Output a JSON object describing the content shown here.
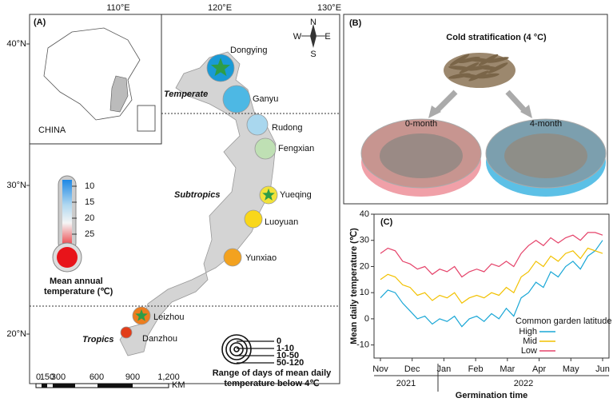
{
  "panel_a": {
    "label": "(A)",
    "lon_labels": [
      "110°E",
      "120°E",
      "130°E"
    ],
    "lat_labels": [
      "40°N",
      "30°N",
      "20°N"
    ],
    "inset_label": "CHINA",
    "compass": [
      "N",
      "E",
      "S",
      "W"
    ],
    "zones": [
      "Temperate",
      "Subtropics",
      "Tropics"
    ],
    "sites": [
      {
        "name": "Dongying",
        "color": "#1a9ad6"
      },
      {
        "name": "Ganyu",
        "color": "#4db8e4"
      },
      {
        "name": "Rudong",
        "color": "#a9d7ee"
      },
      {
        "name": "Fengxian",
        "color": "#bfe0b4"
      },
      {
        "name": "Yueqing",
        "color": "#f2e23a"
      },
      {
        "name": "Luoyuan",
        "color": "#f9d71a"
      },
      {
        "name": "Yunxiao",
        "color": "#f3a21f"
      },
      {
        "name": "Leizhou",
        "color": "#ec7d1f"
      },
      {
        "name": "Danzhou",
        "color": "#e23d19"
      }
    ],
    "thermometer": {
      "ticks": [
        10,
        15,
        20,
        25
      ],
      "title": [
        "Mean annual",
        "temperature (℃)"
      ]
    },
    "scale_bar": {
      "ticks": [
        0,
        150,
        300,
        600,
        900,
        {
          "value": 1200,
          "label": "1,200"
        }
      ],
      "unit": "KM"
    },
    "ring_legend": {
      "labels": [
        "0",
        "1-10",
        "10-50",
        "50-120"
      ],
      "caption": [
        "Range of days of mean daily",
        "temperature below 4℃"
      ]
    }
  },
  "panel_b": {
    "label": "(B)",
    "title": "Cold stratification (4 °C)",
    "dishes": [
      "0-month",
      "4-month"
    ]
  },
  "chart_data": {
    "type": "line",
    "label": "(C)",
    "ylabel": "Mean daily temperature (℃)",
    "xlabel": "Germination time",
    "x_labels": [
      "Nov",
      "Dec",
      "Jan",
      "Feb",
      "Mar",
      "Apr",
      "May",
      "Jun"
    ],
    "years": [
      "2021",
      "2022"
    ],
    "legend_title": "Common garden latitude",
    "ylim": [
      -15,
      40
    ],
    "yticks": [
      -10,
      0,
      10,
      20,
      30,
      40
    ],
    "series": [
      {
        "name": "High",
        "color": "#1aa7d6",
        "values": [
          8,
          11,
          10,
          6,
          3,
          0,
          1,
          -2,
          0,
          -1,
          1,
          -3,
          0,
          1,
          -1,
          2,
          0,
          4,
          1,
          8,
          10,
          14,
          12,
          18,
          16,
          20,
          22,
          19,
          24,
          26,
          30
        ]
      },
      {
        "name": "Mid",
        "color": "#f2c100",
        "values": [
          15,
          17,
          16,
          13,
          12,
          9,
          10,
          7,
          9,
          8,
          10,
          6,
          8,
          9,
          8,
          10,
          9,
          12,
          10,
          16,
          18,
          22,
          20,
          24,
          22,
          25,
          26,
          23,
          27,
          26,
          25
        ]
      },
      {
        "name": "Low",
        "color": "#e5436a",
        "values": [
          25,
          27,
          26,
          22,
          21,
          19,
          20,
          17,
          19,
          18,
          20,
          16,
          18,
          19,
          18,
          21,
          20,
          22,
          20,
          25,
          28,
          30,
          28,
          31,
          29,
          31,
          32,
          30,
          33,
          33,
          32
        ]
      }
    ]
  }
}
